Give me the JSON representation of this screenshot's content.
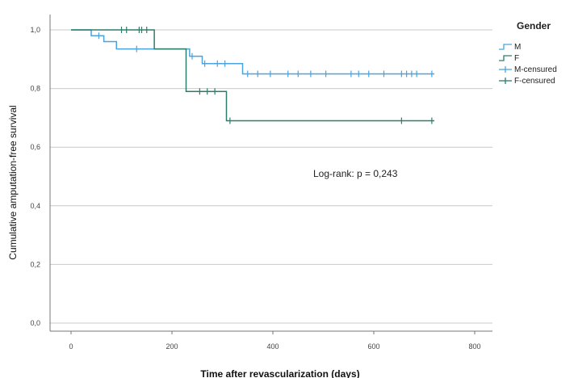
{
  "chart_data": {
    "type": "line",
    "subtype": "kaplan-meier step",
    "xlabel": "Time after revascularization (days)",
    "ylabel": "Cumulative amputation-free survival",
    "xlim": [
      0,
      800
    ],
    "ylim": [
      0,
      1
    ],
    "x_ticks": [
      "0",
      "200",
      "400",
      "600",
      "800"
    ],
    "y_ticks": [
      "0,0",
      "0,2",
      "0,4",
      "0,6",
      "0,8",
      "1,0"
    ],
    "y_tick_values": [
      0,
      0.2,
      0.4,
      0.6,
      0.8,
      1.0
    ],
    "x_tick_values": [
      0,
      200,
      400,
      600,
      800
    ],
    "grid": "horizontal",
    "legend_placement": "top-right outside",
    "legend_title": "Gender",
    "annotation": "Log-rank:   p = 0,243",
    "series": [
      {
        "name": "M",
        "color": "#4aa3df",
        "steps": [
          [
            0,
            1.0
          ],
          [
            40,
            0.98
          ],
          [
            65,
            0.96
          ],
          [
            90,
            0.935
          ],
          [
            235,
            0.91
          ],
          [
            260,
            0.885
          ],
          [
            340,
            0.85
          ],
          [
            720,
            0.85
          ]
        ],
        "censored": [
          [
            55,
            0.98
          ],
          [
            130,
            0.935
          ],
          [
            240,
            0.91
          ],
          [
            265,
            0.885
          ],
          [
            290,
            0.885
          ],
          [
            305,
            0.885
          ],
          [
            350,
            0.85
          ],
          [
            370,
            0.85
          ],
          [
            395,
            0.85
          ],
          [
            430,
            0.85
          ],
          [
            450,
            0.85
          ],
          [
            475,
            0.85
          ],
          [
            505,
            0.85
          ],
          [
            555,
            0.85
          ],
          [
            570,
            0.85
          ],
          [
            590,
            0.85
          ],
          [
            620,
            0.85
          ],
          [
            655,
            0.85
          ],
          [
            665,
            0.85
          ],
          [
            675,
            0.85
          ],
          [
            685,
            0.85
          ],
          [
            715,
            0.85
          ]
        ]
      },
      {
        "name": "F",
        "color": "#2e7d6b",
        "steps": [
          [
            0,
            1.0
          ],
          [
            165,
            0.935
          ],
          [
            228,
            0.79
          ],
          [
            308,
            0.69
          ],
          [
            720,
            0.69
          ]
        ],
        "censored": [
          [
            100,
            1.0
          ],
          [
            110,
            1.0
          ],
          [
            135,
            1.0
          ],
          [
            140,
            1.0
          ],
          [
            150,
            1.0
          ],
          [
            255,
            0.79
          ],
          [
            270,
            0.79
          ],
          [
            285,
            0.79
          ],
          [
            315,
            0.69
          ],
          [
            655,
            0.69
          ],
          [
            715,
            0.69
          ]
        ]
      }
    ],
    "legend_entries": [
      {
        "label": "M",
        "kind": "step",
        "color": "#4aa3df"
      },
      {
        "label": "F",
        "kind": "step",
        "color": "#2e7d6b"
      },
      {
        "label": "M-censured",
        "kind": "cross",
        "color": "#4aa3df"
      },
      {
        "label": "F-censured",
        "kind": "cross",
        "color": "#2e7d6b"
      }
    ]
  }
}
